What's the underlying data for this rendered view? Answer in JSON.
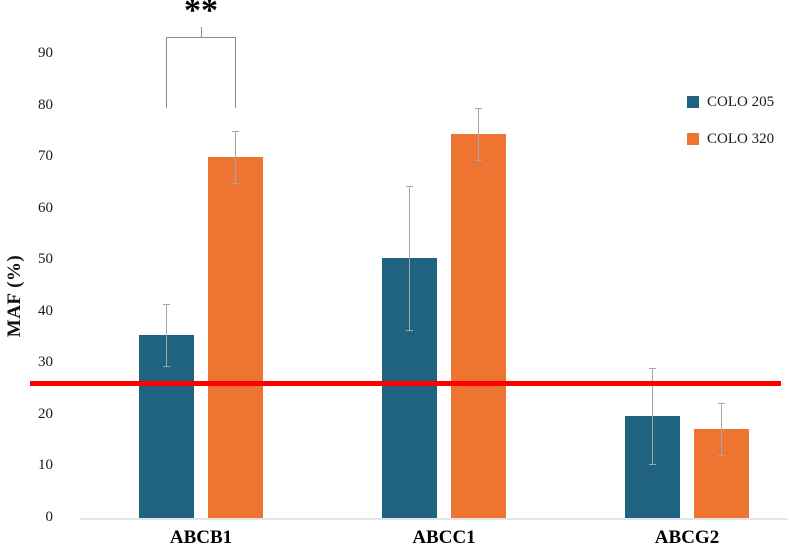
{
  "chart_data": {
    "type": "bar",
    "title": "",
    "xlabel": "",
    "ylabel": "MAF (%)",
    "ylim": [
      0,
      95
    ],
    "yticks": [
      0,
      10,
      20,
      30,
      40,
      50,
      60,
      70,
      80,
      90
    ],
    "grid": false,
    "legend_position": "right",
    "categories": [
      "ABCB1",
      "ABCC1",
      "ABCG2"
    ],
    "series": [
      {
        "name": "COLO 205",
        "color": "#1F6380",
        "values": [
          35.5,
          50.5,
          19.8
        ],
        "errors": [
          6,
          14,
          9.3
        ]
      },
      {
        "name": "COLO 320",
        "color": "#ED7431",
        "values": [
          70,
          74.5,
          17.3
        ],
        "errors": [
          5,
          5,
          5
        ]
      }
    ],
    "reference_line": {
      "value": 26,
      "color": "#FE0000"
    },
    "significance": {
      "label": "**",
      "category": "ABCB1",
      "category_index": 0,
      "bracket_top_value": 93.3,
      "bracket_leg_bottom_value": 79.5
    }
  }
}
